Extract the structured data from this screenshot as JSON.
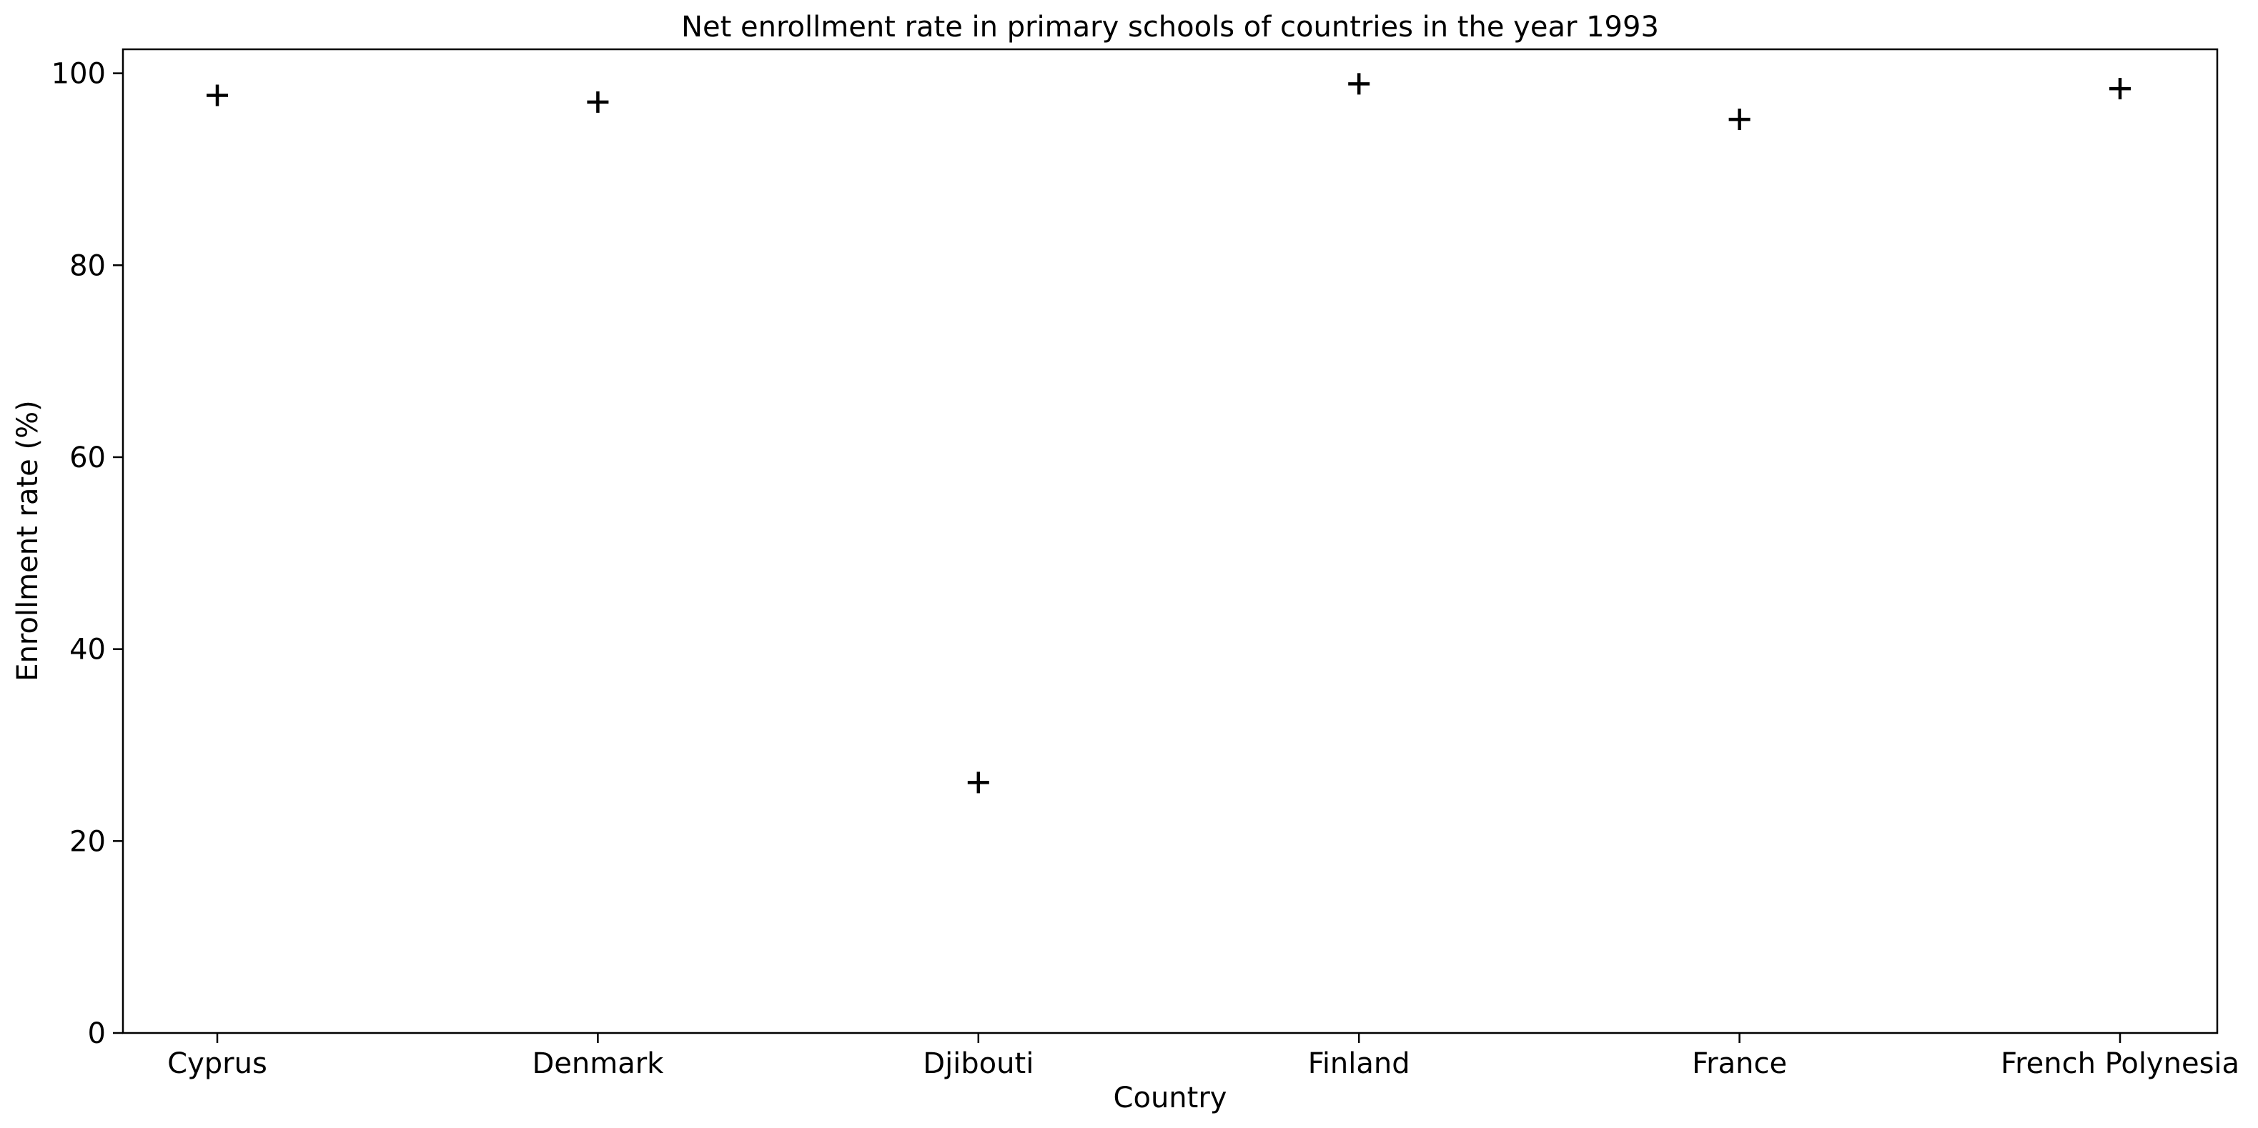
{
  "chart_data": {
    "type": "scatter",
    "title": "Net enrollment rate in primary schools of countries in the year 1993",
    "xlabel": "Country",
    "ylabel": "Enrollment rate (%)",
    "categories": [
      "Cyprus",
      "Denmark",
      "Djibouti",
      "Finland",
      "France",
      "French Polynesia"
    ],
    "values": [
      97.7,
      97.0,
      26.1,
      98.9,
      95.2,
      98.4
    ],
    "ylim": [
      0,
      102.5
    ],
    "yticks": [
      0,
      20,
      40,
      60,
      80,
      100
    ],
    "marker": "plus",
    "marker_color": "#000000",
    "grid": false,
    "legend": "none"
  }
}
